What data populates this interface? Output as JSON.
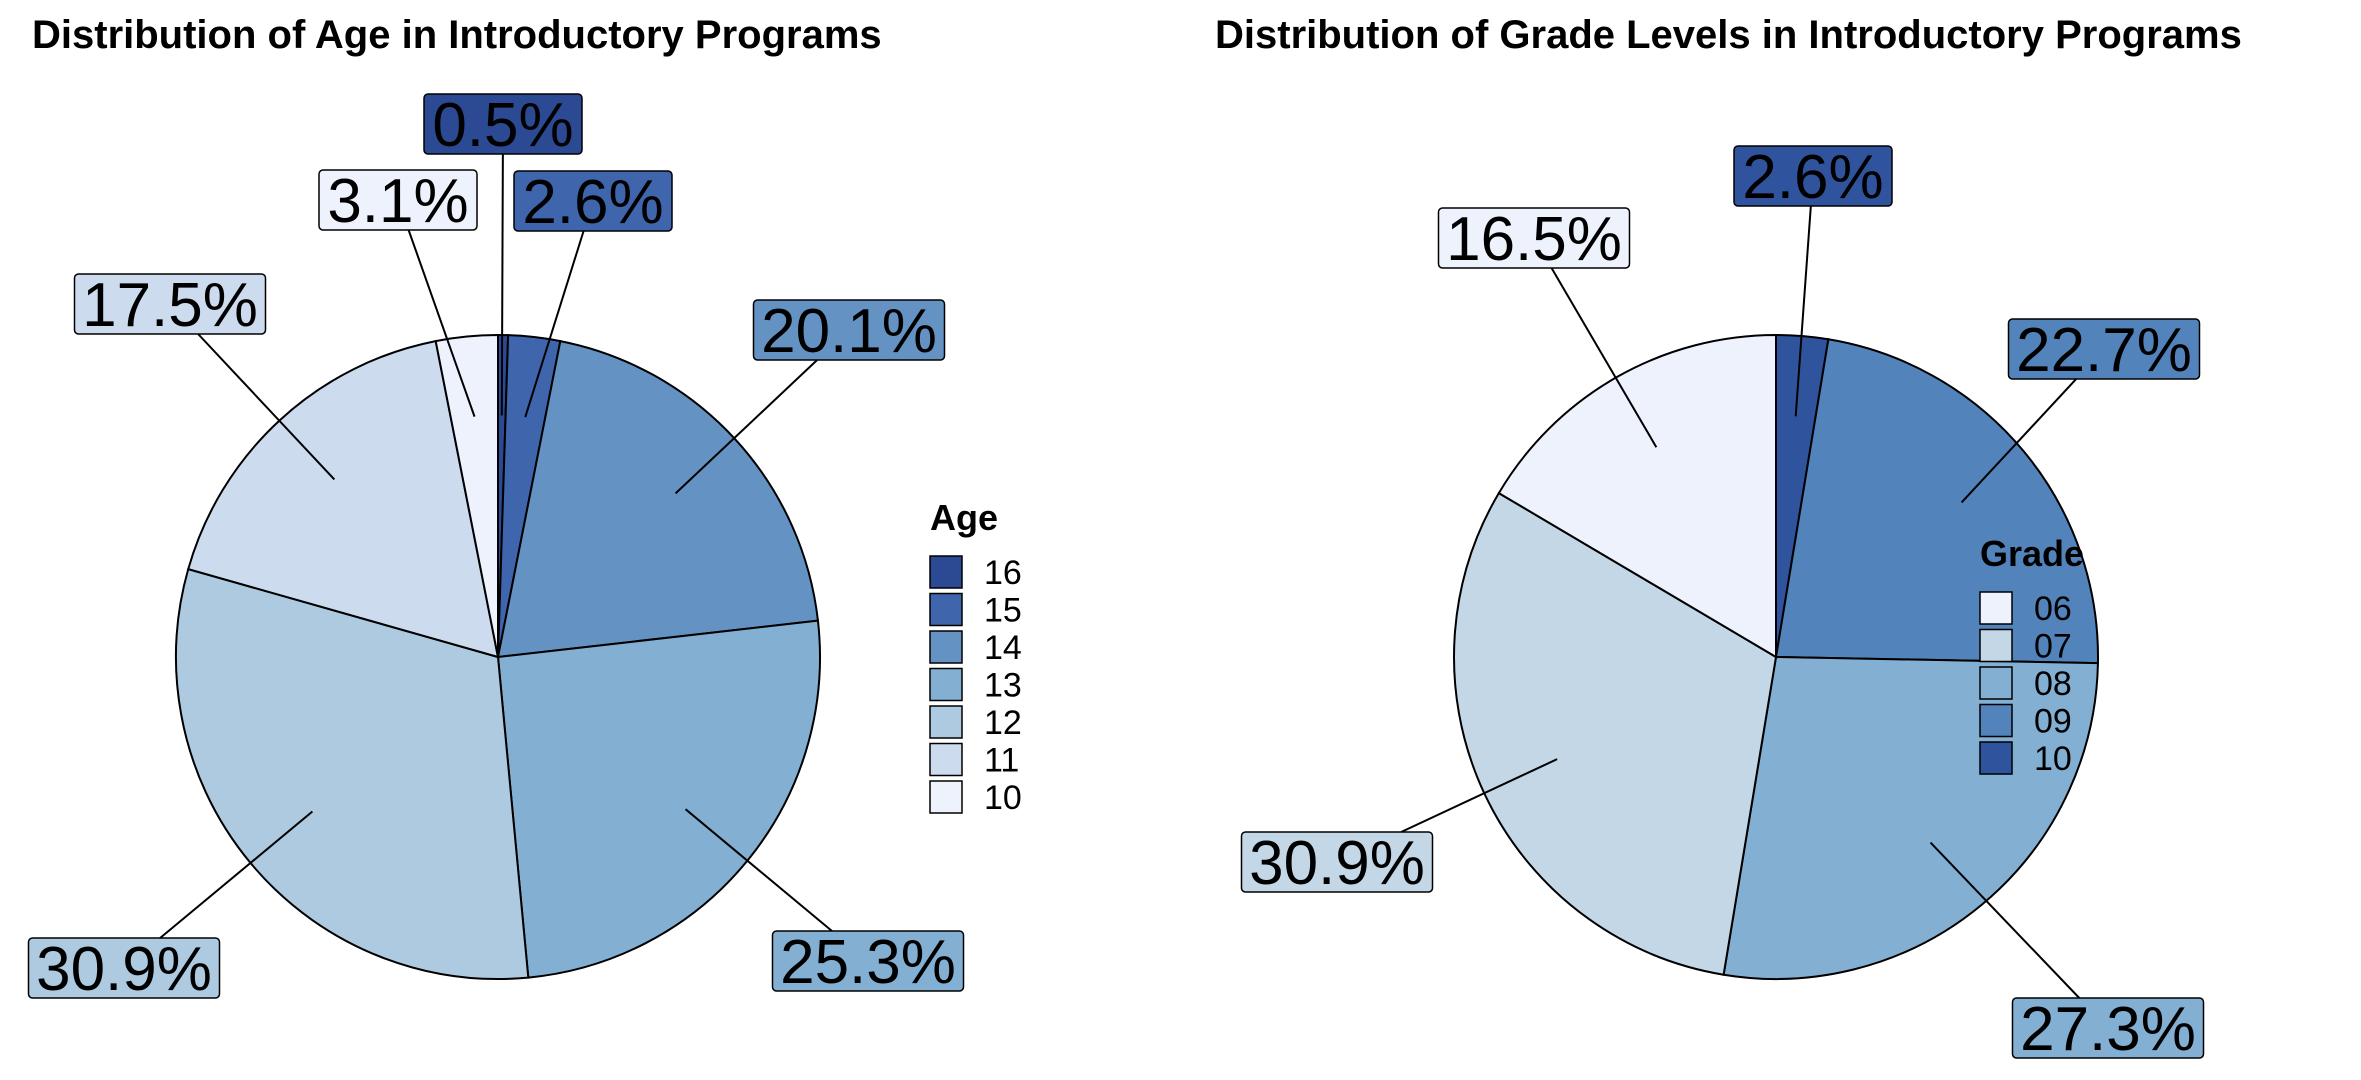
{
  "chart_data": [
    {
      "type": "pie",
      "title": "Distribution of Age in Introductory Programs",
      "legend_title": "Age",
      "legend_position": "right",
      "slices": [
        {
          "label": "16",
          "value": 0.5,
          "display": "0.5%",
          "color": "#2b4a93"
        },
        {
          "label": "15",
          "value": 2.6,
          "display": "2.6%",
          "color": "#3f65ad"
        },
        {
          "label": "14",
          "value": 20.1,
          "display": "20.1%",
          "color": "#6493c3"
        },
        {
          "label": "13",
          "value": 25.3,
          "display": "25.3%",
          "color": "#83afd3"
        },
        {
          "label": "12",
          "value": 30.9,
          "display": "30.9%",
          "color": "#adcae0"
        },
        {
          "label": "11",
          "value": 17.5,
          "display": "17.5%",
          "color": "#ccdcee"
        },
        {
          "label": "10",
          "value": 3.1,
          "display": "3.1%",
          "color": "#eef2fc"
        }
      ],
      "legend_order": [
        "16",
        "15",
        "14",
        "13",
        "12",
        "11",
        "10"
      ]
    },
    {
      "type": "pie",
      "title": "Distribution of Grade Levels in Introductory Programs",
      "legend_title": "Grade",
      "legend_position": "right",
      "slices": [
        {
          "label": "10",
          "value": 2.6,
          "display": "2.6%",
          "color": "#2f539d"
        },
        {
          "label": "09",
          "value": 22.7,
          "display": "22.7%",
          "color": "#5283bb"
        },
        {
          "label": "08",
          "value": 27.3,
          "display": "27.3%",
          "color": "#83afd3"
        },
        {
          "label": "07",
          "value": 30.9,
          "display": "30.9%",
          "color": "#c3d7e6"
        },
        {
          "label": "06",
          "value": 16.5,
          "display": "16.5%",
          "color": "#eef2fc"
        }
      ],
      "legend_order": [
        "06",
        "07",
        "08",
        "09",
        "10"
      ]
    }
  ]
}
